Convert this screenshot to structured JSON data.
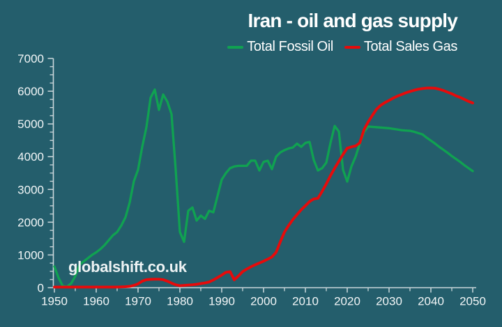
{
  "header": {
    "title": "Iran - oil and gas supply"
  },
  "legend": {
    "items": [
      {
        "label": "Total Fossil Oil",
        "color": "#10a251"
      },
      {
        "label": "Total Sales Gas",
        "color": "#e60b0b"
      }
    ]
  },
  "watermark": {
    "text": "globalshift.co.uk"
  },
  "colors": {
    "background": "#245e6c",
    "axis": "#ccd8dc",
    "tick_label": "#f2f6f7",
    "title_text": "#ffffff",
    "watermark_text": "#eef3f4"
  },
  "chart_data": {
    "type": "line",
    "title": "Iran - oil and gas supply",
    "xlabel": "",
    "ylabel": "",
    "xlim": [
      1950,
      2050
    ],
    "ylim": [
      0,
      7000
    ],
    "xticks_major": [
      1950,
      1960,
      1970,
      1980,
      1990,
      2000,
      2010,
      2020,
      2030,
      2040,
      2050
    ],
    "xticks_minor_step": 5,
    "yticks_major": [
      0,
      1000,
      2000,
      3000,
      4000,
      5000,
      6000,
      7000
    ],
    "yticks_minor_step": 250,
    "grid": "off",
    "legend_position": "top",
    "x": [
      1950,
      1951,
      1952,
      1953,
      1954,
      1955,
      1956,
      1957,
      1958,
      1959,
      1960,
      1961,
      1962,
      1963,
      1964,
      1965,
      1966,
      1967,
      1968,
      1969,
      1970,
      1971,
      1972,
      1973,
      1974,
      1975,
      1976,
      1977,
      1978,
      1979,
      1980,
      1981,
      1982,
      1983,
      1984,
      1985,
      1986,
      1987,
      1988,
      1989,
      1990,
      1991,
      1992,
      1993,
      1994,
      1995,
      1996,
      1997,
      1998,
      1999,
      2000,
      2001,
      2002,
      2003,
      2004,
      2005,
      2006,
      2007,
      2008,
      2009,
      2010,
      2011,
      2012,
      2013,
      2014,
      2015,
      2016,
      2017,
      2018,
      2019,
      2020,
      2021,
      2022,
      2023,
      2024,
      2025,
      2026,
      2027,
      2028,
      2029,
      2030,
      2031,
      2032,
      2033,
      2034,
      2035,
      2036,
      2037,
      2038,
      2039,
      2040,
      2041,
      2042,
      2043,
      2044,
      2045,
      2046,
      2047,
      2048,
      2049,
      2050
    ],
    "series": [
      {
        "name": "Total Fossil Oil",
        "color": "#10a251",
        "values": [
          650,
          300,
          50,
          30,
          130,
          350,
          700,
          800,
          900,
          1000,
          1080,
          1180,
          1300,
          1450,
          1600,
          1700,
          1900,
          2150,
          2600,
          3250,
          3600,
          4300,
          4900,
          5800,
          6050,
          5430,
          5900,
          5680,
          5300,
          3600,
          1700,
          1400,
          2350,
          2450,
          2050,
          2200,
          2100,
          2350,
          2300,
          2800,
          3300,
          3500,
          3650,
          3700,
          3720,
          3720,
          3720,
          3880,
          3880,
          3580,
          3840,
          3880,
          3620,
          4000,
          4130,
          4200,
          4250,
          4280,
          4400,
          4300,
          4420,
          4450,
          3900,
          3580,
          3650,
          3820,
          4420,
          4940,
          4770,
          3600,
          3240,
          3700,
          4000,
          4400,
          4750,
          4920,
          4910,
          4900,
          4890,
          4880,
          4870,
          4850,
          4830,
          4810,
          4800,
          4790,
          4760,
          4720,
          4680,
          4580,
          4490,
          4400,
          4300,
          4210,
          4120,
          4020,
          3930,
          3840,
          3740,
          3650,
          3560
        ]
      },
      {
        "name": "Total Sales Gas",
        "color": "#e60b0b",
        "values": [
          20,
          20,
          20,
          20,
          20,
          20,
          20,
          20,
          20,
          20,
          20,
          20,
          20,
          20,
          20,
          20,
          25,
          30,
          40,
          70,
          120,
          200,
          245,
          255,
          260,
          260,
          245,
          200,
          140,
          90,
          60,
          70,
          80,
          90,
          105,
          125,
          145,
          175,
          235,
          310,
          385,
          470,
          490,
          240,
          360,
          490,
          570,
          640,
          700,
          755,
          810,
          870,
          940,
          1080,
          1400,
          1700,
          1900,
          2080,
          2230,
          2380,
          2500,
          2630,
          2710,
          2730,
          2940,
          3170,
          3420,
          3650,
          3860,
          4070,
          4260,
          4300,
          4330,
          4420,
          4820,
          5060,
          5260,
          5450,
          5570,
          5650,
          5720,
          5790,
          5850,
          5900,
          5950,
          5990,
          6030,
          6060,
          6080,
          6095,
          6100,
          6090,
          6060,
          6020,
          5970,
          5920,
          5860,
          5810,
          5750,
          5690,
          5640
        ]
      }
    ]
  }
}
